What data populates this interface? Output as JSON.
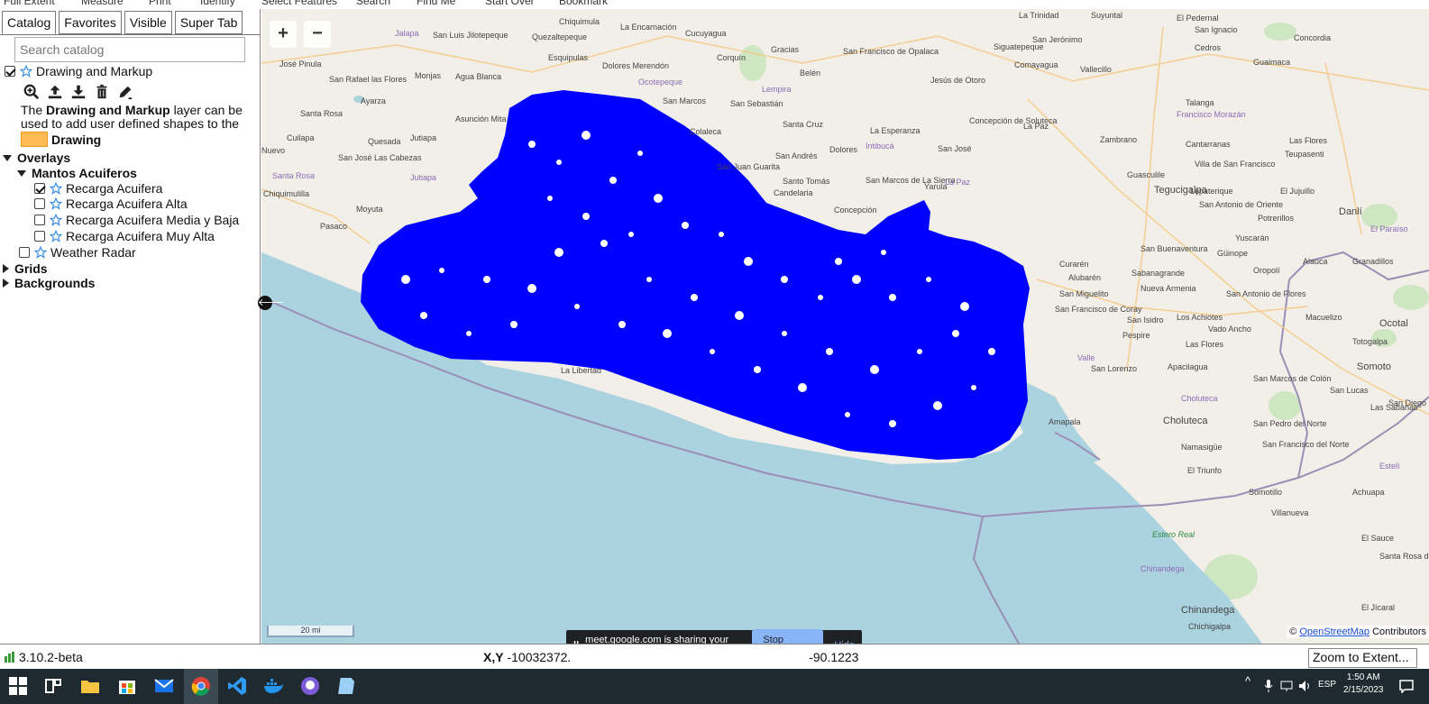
{
  "toolbar": {
    "items": [
      "Full Extent",
      "Measure",
      "Print",
      "Identify",
      "Select Features",
      "Search",
      "Find Me",
      "Start Over",
      "Bookmark"
    ]
  },
  "sidebar": {
    "tabs": [
      "Catalog",
      "Favorites",
      "Visible",
      "Super Tab"
    ],
    "active_tab": "Catalog",
    "search_placeholder": "Search catalog",
    "drawing_layer": {
      "label": "Drawing and Markup",
      "checked": true,
      "description_prefix": "The",
      "description_bold": "Drawing and Markup",
      "description_rest": "layer can be used to add user defined shapes to the map.",
      "legend_label": "Drawing",
      "legend_color": "#ffbb55"
    },
    "overlays": {
      "label": "Overlays",
      "group": {
        "label": "Mantos Acuiferos",
        "items": [
          {
            "label": "Recarga Acuifera",
            "checked": true
          },
          {
            "label": "Recarga Acuifera Alta",
            "checked": false
          },
          {
            "label": "Recarga Acuifera Media y Baja",
            "checked": false
          },
          {
            "label": "Recarga Acuifera Muy Alta",
            "checked": false
          }
        ]
      },
      "weather": {
        "label": "Weather Radar",
        "checked": false
      }
    },
    "grids": {
      "label": "Grids"
    },
    "backgrounds": {
      "label": "Backgrounds"
    }
  },
  "map": {
    "zoom_in": "+",
    "zoom_out": "−",
    "scale_label": "20 mi",
    "attribution_prefix": "©",
    "attribution_link": "OpenStreetMap",
    "attribution_rest": "Contributors",
    "overlay_color": "#0000ff",
    "water_color": "#aad3df",
    "places": [
      {
        "name": "Chiquimula"
      },
      {
        "name": "La Encarnación"
      },
      {
        "name": "Cucuyagua"
      },
      {
        "name": "Gracias"
      },
      {
        "name": "San Francisco de Opalaca"
      },
      {
        "name": "Comayagua"
      },
      {
        "name": "La Trinidad"
      },
      {
        "name": "Suyuntal"
      },
      {
        "name": "El Pedernal"
      },
      {
        "name": "San Ignacio"
      },
      {
        "name": "Concordia"
      },
      {
        "name": "Jalapa"
      },
      {
        "name": "San Luis Jilotepeque"
      },
      {
        "name": "Quezaltepeque"
      },
      {
        "name": "Esquipulas"
      },
      {
        "name": "Dolores Merendón"
      },
      {
        "name": "Corquín"
      },
      {
        "name": "Belén"
      },
      {
        "name": "Jesús de Otoro"
      },
      {
        "name": "Siguatepeque"
      },
      {
        "name": "San Jerónimo"
      },
      {
        "name": "Cedros"
      },
      {
        "name": "Guaimaca"
      },
      {
        "name": "José Pinula"
      },
      {
        "name": "San Rafael las Flores"
      },
      {
        "name": "Monjas"
      },
      {
        "name": "Agua Blanca"
      },
      {
        "name": "Ocotepeque"
      },
      {
        "name": "Lempira"
      },
      {
        "name": "Vallecillo"
      },
      {
        "name": "Santa Rosa"
      },
      {
        "name": "Ayarza"
      },
      {
        "name": "Jutiapa"
      },
      {
        "name": "Asunción Mita"
      },
      {
        "name": "San Marcos"
      },
      {
        "name": "San Sebastián"
      },
      {
        "name": "Intibucá"
      },
      {
        "name": "La Esperanza"
      },
      {
        "name": "Concepción de Soluteca"
      },
      {
        "name": "La Paz"
      },
      {
        "name": "Talanga"
      },
      {
        "name": "Francisco Morazán"
      },
      {
        "name": "Cuilapa"
      },
      {
        "name": "Quesada"
      },
      {
        "name": "Colaleca"
      },
      {
        "name": "Santa Cruz"
      },
      {
        "name": "Dolores"
      },
      {
        "name": "San José"
      },
      {
        "name": "Zambrano"
      },
      {
        "name": "Cantarranas"
      },
      {
        "name": "Las Flores"
      },
      {
        "name": "Teupasenti"
      },
      {
        "name": "Nuevo"
      },
      {
        "name": "San José Las Cabezas"
      },
      {
        "name": "San Andrés"
      },
      {
        "name": "Villa de San Francisco"
      },
      {
        "name": "Santa Rosa"
      },
      {
        "name": "Jutiapa"
      },
      {
        "name": "San Juan Guarita"
      },
      {
        "name": "Guasculile"
      },
      {
        "name": "Tegucigalpa"
      },
      {
        "name": "Chiquimulilla"
      },
      {
        "name": "Santo Tomás"
      },
      {
        "name": "Candelaria"
      },
      {
        "name": "San Marcos de La Sierra"
      },
      {
        "name": "Yarula"
      },
      {
        "name": "La Paz"
      },
      {
        "name": "Lepaterique"
      },
      {
        "name": "El Jujuillo"
      },
      {
        "name": "San Antonio de Oriente"
      },
      {
        "name": "Moyuta"
      },
      {
        "name": "Concepción"
      },
      {
        "name": "Pasaco"
      },
      {
        "name": "Danlí"
      },
      {
        "name": "El Paraíso"
      },
      {
        "name": "Potrerillos"
      },
      {
        "name": "Yuscarán"
      },
      {
        "name": "San Buenaventura"
      },
      {
        "name": "Curarén"
      },
      {
        "name": "Güinope"
      },
      {
        "name": "Alauca"
      },
      {
        "name": "Granadillos"
      },
      {
        "name": "Alubarén"
      },
      {
        "name": "Sabanagrande"
      },
      {
        "name": "Oropolí"
      },
      {
        "name": "San Miguelito"
      },
      {
        "name": "Nueva Armenia"
      },
      {
        "name": "San Antonio de Flores"
      },
      {
        "name": "Macuelizo"
      },
      {
        "name": "Ocotal"
      },
      {
        "name": "San Francisco de Coray"
      },
      {
        "name": "Pespire"
      },
      {
        "name": "San Isidro"
      },
      {
        "name": "Los Achiotes"
      },
      {
        "name": "Vado Ancho"
      },
      {
        "name": "Las Flores"
      },
      {
        "name": "Totogalpa"
      },
      {
        "name": "Somoto"
      },
      {
        "name": "Valle"
      },
      {
        "name": "San Lorenzo"
      },
      {
        "name": "Apacilagua"
      },
      {
        "name": "Choluteca"
      },
      {
        "name": "San Marcos de Colón"
      },
      {
        "name": "San Lucas"
      },
      {
        "name": "San Diego"
      },
      {
        "name": "Las Sabanas"
      },
      {
        "name": "Amapala"
      },
      {
        "name": "Choluteca"
      },
      {
        "name": "San Pedro del Norte"
      },
      {
        "name": "San Francisco del Norte"
      },
      {
        "name": "Namasigüe"
      },
      {
        "name": "El Triunfo"
      },
      {
        "name": "Somotillo"
      },
      {
        "name": "Achuapa"
      },
      {
        "name": "Estelí"
      },
      {
        "name": "Villanueva"
      },
      {
        "name": "El Sauce"
      },
      {
        "name": "Estero Real"
      },
      {
        "name": "Chinandega"
      },
      {
        "name": "Santa Rosa del Peñón"
      },
      {
        "name": "Chinandega"
      },
      {
        "name": "Chichigalpa"
      },
      {
        "name": "El Jícaral"
      },
      {
        "name": "La Libertad"
      }
    ]
  },
  "collapse_toggle": "🡐",
  "share_banner": {
    "pause": "||",
    "message": "meet.google.com is sharing your screen.",
    "stop": "Stop sharing",
    "hide": "Hide"
  },
  "status_bar": {
    "version": "3.10.2-beta",
    "coords_label": "X,Y",
    "coords_value": "-10032372.",
    "coords_tail": "-90.1223",
    "zoom_button": "Zoom to Extent..."
  },
  "taskbar": {
    "lang": "ESP",
    "time": "1:50 AM",
    "date": "2/15/2023",
    "apps": [
      "start-icon",
      "task-view-icon",
      "file-explorer-icon",
      "store-icon",
      "mail-icon",
      "chrome-icon",
      "vscode-icon",
      "docker-icon",
      "github-desktop-icon",
      "notepad-icon"
    ]
  }
}
